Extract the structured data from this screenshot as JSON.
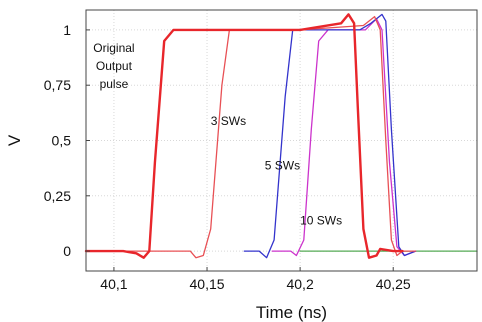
{
  "chart_data": {
    "type": "line",
    "title": "",
    "xlabel": "Time (ns)",
    "ylabel": "V",
    "xlim": [
      40.085,
      40.295
    ],
    "ylim": [
      -0.09,
      1.09
    ],
    "x_ticks": [
      {
        "value": 40.1,
        "label": "40,1"
      },
      {
        "value": 40.15,
        "label": "40,15"
      },
      {
        "value": 40.2,
        "label": "40,2"
      },
      {
        "value": 40.25,
        "label": "40,25"
      }
    ],
    "y_ticks": [
      {
        "value": 0,
        "label": "0"
      },
      {
        "value": 0.25,
        "label": "0,25"
      },
      {
        "value": 0.5,
        "label": "0,5"
      },
      {
        "value": 0.75,
        "label": "0,75"
      },
      {
        "value": 1,
        "label": "1"
      }
    ],
    "grid": true,
    "legend": "none",
    "series": [
      {
        "name": "Original Output pulse",
        "color": "#e8262b",
        "x": [
          40.085,
          40.105,
          40.112,
          40.116,
          40.119,
          40.122,
          40.127,
          40.132,
          40.2,
          40.222,
          40.226,
          40.229,
          40.231,
          40.234,
          40.237,
          40.241,
          40.243,
          40.25,
          40.255
        ],
        "y": [
          0,
          0,
          -0.01,
          -0.03,
          0.0,
          0.4,
          0.95,
          1.0,
          1.0,
          1.03,
          1.07,
          1.03,
          0.65,
          0.1,
          -0.03,
          -0.02,
          0.01,
          0.0,
          0.0
        ]
      },
      {
        "name": "3 SWs",
        "color": "#e85055",
        "x": [
          40.085,
          40.141,
          40.144,
          40.148,
          40.152,
          40.158,
          40.162,
          40.2,
          40.234,
          40.24,
          40.243,
          40.246,
          40.249,
          40.252,
          40.255,
          40.262
        ],
        "y": [
          0,
          0,
          -0.03,
          -0.02,
          0.1,
          0.75,
          1.0,
          1.0,
          1.02,
          1.06,
          1.0,
          0.5,
          0.05,
          -0.02,
          0.0,
          0.0
        ]
      },
      {
        "name": "5 SWs",
        "color": "#3333cc",
        "x": [
          40.17,
          40.178,
          40.182,
          40.186,
          40.192,
          40.196,
          40.232,
          40.238,
          40.244,
          40.246,
          40.249,
          40.253,
          40.256,
          40.262
        ],
        "y": [
          0,
          0.0,
          -0.03,
          0.05,
          0.7,
          1.0,
          1.0,
          1.03,
          1.07,
          1.04,
          0.55,
          0.02,
          -0.02,
          0.0
        ]
      },
      {
        "name": "10 SWs",
        "color": "#cc33cc",
        "x": [
          40.185,
          40.195,
          40.198,
          40.202,
          40.206,
          40.21,
          40.215,
          40.235,
          40.241,
          40.244,
          40.248,
          40.252,
          40.256,
          40.262
        ],
        "y": [
          0,
          0.0,
          -0.02,
          0.05,
          0.55,
          0.95,
          1.0,
          1.0,
          1.05,
          1.0,
          0.4,
          0.02,
          -0.02,
          0.0
        ]
      },
      {
        "name": "",
        "color": "#55aa55",
        "x": [
          40.2,
          40.295
        ],
        "y": [
          0,
          0
        ]
      }
    ],
    "annotations": [
      {
        "lines": [
          "Original",
          "Output",
          "pulse"
        ],
        "x": 40.1,
        "y": 0.9
      },
      {
        "lines": [
          "3 SWs"
        ],
        "x": 40.152,
        "y": 0.57
      },
      {
        "lines": [
          "5 SWs"
        ],
        "x": 40.181,
        "y": 0.37
      },
      {
        "lines": [
          "10 SWs"
        ],
        "x": 40.2,
        "y": 0.12
      }
    ]
  }
}
